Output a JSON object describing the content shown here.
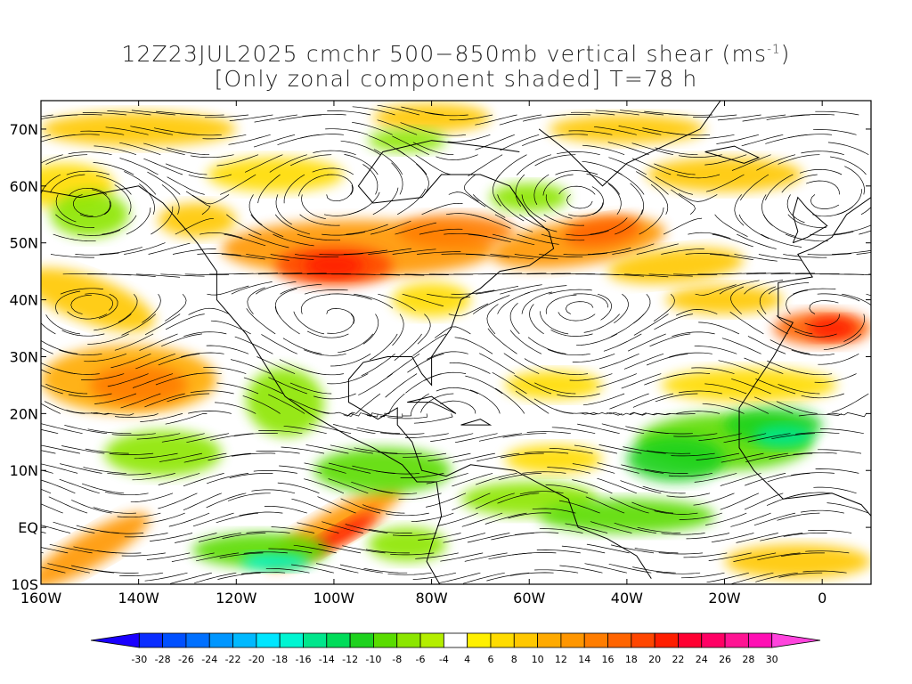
{
  "title": {
    "line1_prefix": "12Z23JUL2025 cmchr 500−850mb vertical shear (ms",
    "line1_sup": "-1",
    "line1_suffix": ")",
    "line2": "[Only zonal component shaded] T=78 h"
  },
  "map": {
    "lon_range": [
      -160,
      10
    ],
    "lat_range": [
      -10,
      75
    ],
    "lat_labels": [
      "70N",
      "60N",
      "50N",
      "40N",
      "30N",
      "20N",
      "10N",
      "EQ",
      "10S"
    ],
    "lon_labels": [
      "160W",
      "140W",
      "120W",
      "100W",
      "80W",
      "60W",
      "40W",
      "20W",
      "0"
    ],
    "field": "zonal component of 500-850mb vertical shear",
    "overlay": "shear streamlines"
  },
  "colorbar": {
    "levels": [
      "-30",
      "-28",
      "-26",
      "-24",
      "-22",
      "-20",
      "-18",
      "-16",
      "-14",
      "-12",
      "-10",
      "-8",
      "-6",
      "-4",
      "4",
      "6",
      "8",
      "10",
      "12",
      "14",
      "16",
      "18",
      "20",
      "22",
      "24",
      "26",
      "28",
      "30"
    ],
    "colors": [
      "#1a00ff",
      "#0a2dff",
      "#0050ff",
      "#0070ff",
      "#0096ff",
      "#00b9ff",
      "#00e6ff",
      "#00f5d2",
      "#00e68c",
      "#00dc5a",
      "#1ed21e",
      "#5adc00",
      "#8ce600",
      "#b4ee00",
      "#ffffff",
      "#fff000",
      "#ffdc00",
      "#ffc800",
      "#ffaa00",
      "#ff9600",
      "#ff7d00",
      "#ff6400",
      "#ff4600",
      "#ff1e00",
      "#ff0032",
      "#ff0064",
      "#ff1493",
      "#ff0fb4",
      "#ff44dd"
    ]
  }
}
